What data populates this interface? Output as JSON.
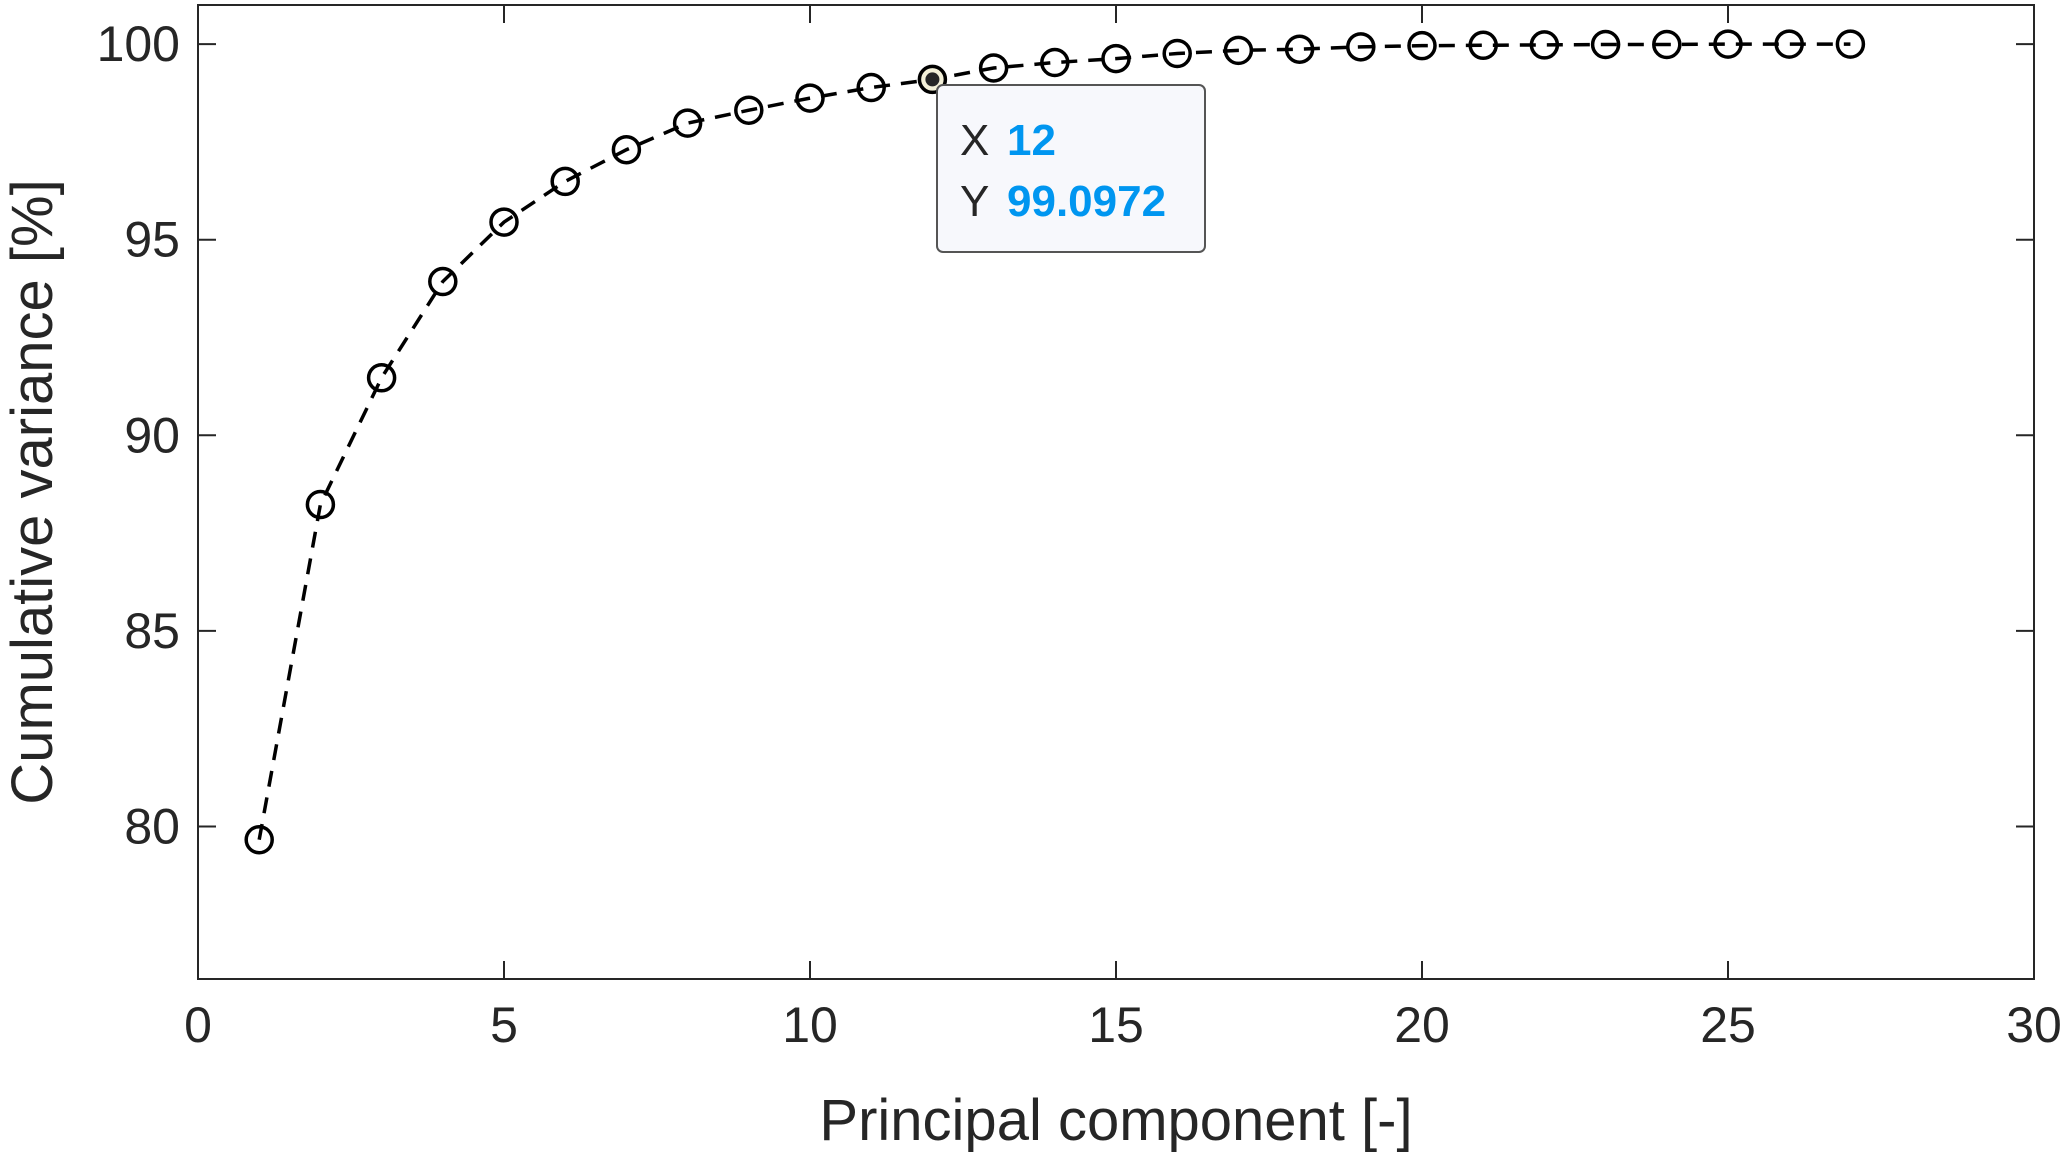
{
  "chart_data": {
    "type": "line",
    "xlabel": "Principal component [-]",
    "ylabel": "Cumulative variance [%]",
    "xlim": [
      0,
      30
    ],
    "ylim": [
      76.1,
      101
    ],
    "xticks": [
      0,
      5,
      10,
      15,
      20,
      25,
      30
    ],
    "yticks": [
      80,
      85,
      90,
      95,
      100
    ],
    "grid": false,
    "line_style": "dashed",
    "marker": "open-circle",
    "color": "#000000",
    "x": [
      1,
      2,
      3,
      4,
      5,
      6,
      7,
      8,
      9,
      10,
      11,
      12,
      13,
      14,
      15,
      16,
      17,
      18,
      19,
      20,
      21,
      22,
      23,
      24,
      25,
      26,
      27
    ],
    "values": [
      79.66,
      88.23,
      91.47,
      93.93,
      95.45,
      96.49,
      97.3,
      97.98,
      98.31,
      98.62,
      98.89,
      99.0972,
      99.39,
      99.53,
      99.63,
      99.76,
      99.84,
      99.87,
      99.93,
      99.96,
      99.97,
      99.98,
      99.99,
      99.99,
      100.0,
      100.0,
      100.0
    ],
    "datatip": {
      "x_label": "X",
      "x_value": "12",
      "y_label": "Y",
      "y_value": "99.0972",
      "value_color": "#0096f0"
    }
  }
}
